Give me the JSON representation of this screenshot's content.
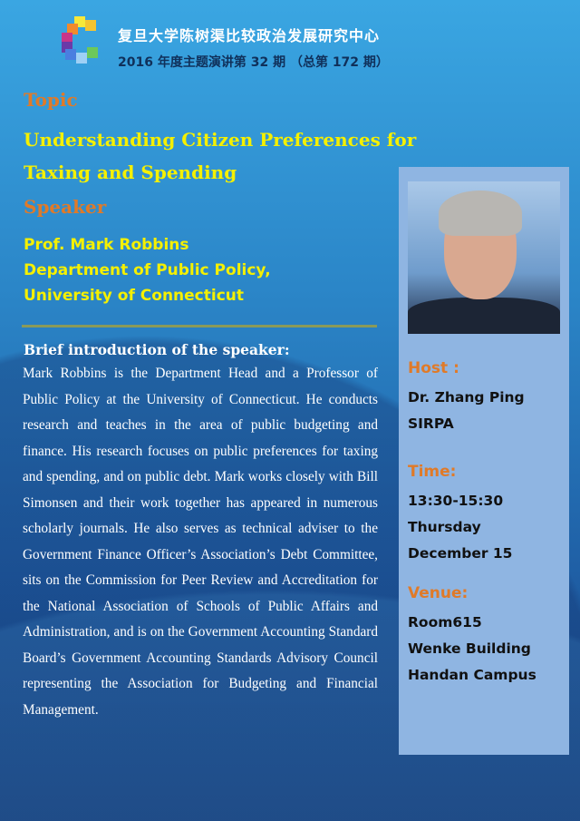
{
  "header": {
    "org": "复旦大学陈树渠比较政治发展研究中心",
    "series": "2016 年度主题演讲第 32 期 （总第 172 期）"
  },
  "topic": {
    "label": "Topic",
    "title_lines": [
      "Understanding Citizen Preferences for",
      "Taxing and Spending"
    ]
  },
  "speaker": {
    "label": "Speaker",
    "lines": [
      "Prof. Mark Robbins",
      "Department of Public Policy,",
      "University of Connecticut"
    ]
  },
  "bio": {
    "heading": "Brief introduction of the speaker:",
    "text": "Mark Robbins is the Department Head and a Professor of Public Policy at the University of Connecticut. He conducts research and teaches in the area of public budgeting and finance. His research focuses on public preferences for taxing and spending, and on public debt. Mark works closely with Bill Simonsen and their work together has appeared in numerous scholarly journals. He also serves as technical adviser to the Government Finance Officer’s Association’s Debt Committee, sits on the Commission for Peer Review and Accreditation for the National Association of Schools of Public Affairs and Administration, and is on the Government Accounting Standard Board’s Government Accounting Standards Advisory Council representing the Association for Budgeting and Financial Management."
  },
  "panel": {
    "host": {
      "label": "Host :",
      "lines": [
        "Dr. Zhang Ping",
        "SIRPA"
      ]
    },
    "time": {
      "label": "Time:",
      "lines": [
        "13:30-15:30",
        "Thursday",
        "December 15"
      ]
    },
    "venue": {
      "label": "Venue:",
      "lines": [
        "Room615",
        "Wenke Building",
        "Handan Campus"
      ]
    }
  },
  "colors": {
    "heading": "#e07a28",
    "title": "#f5f000",
    "panel": "#8fb5e2"
  }
}
